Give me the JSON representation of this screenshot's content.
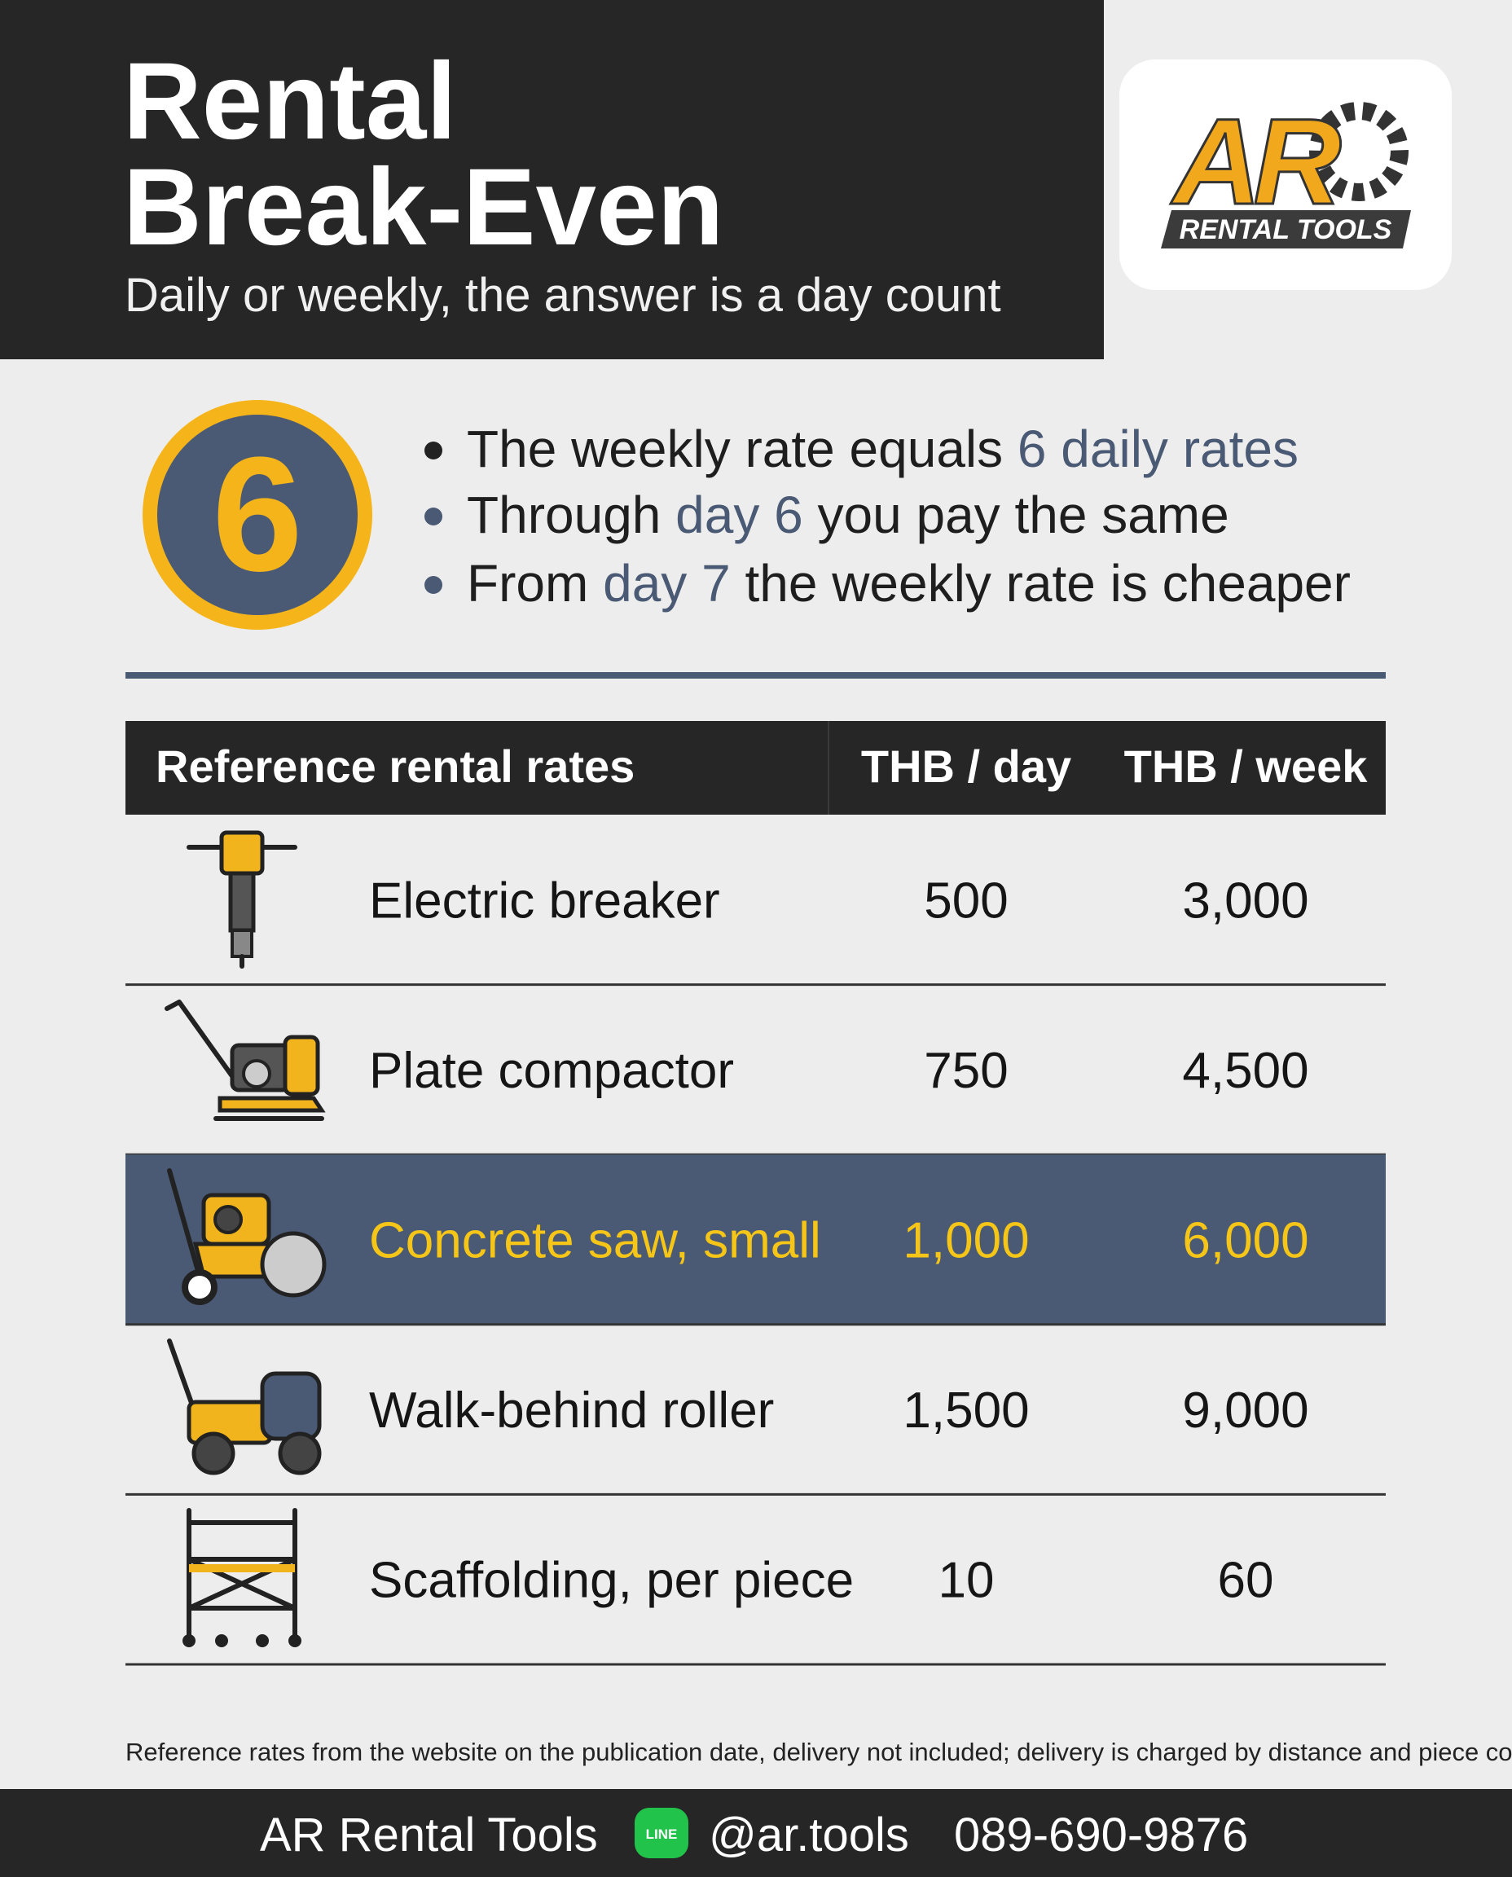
{
  "header": {
    "title": [
      "Rental",
      "Break-Even"
    ],
    "subtitle": "Daily or weekly, the answer is a day count"
  },
  "logo": {
    "mark": "AR",
    "text": "RENTAL TOOLS"
  },
  "badge": "6",
  "bullets": [
    [
      {
        "text": "The weekly rate equals "
      },
      {
        "text": "6 daily rates",
        "accent": true
      }
    ],
    [
      {
        "text": "Through "
      },
      {
        "text": "day 6",
        "accent": true
      },
      {
        "text": " you pay the same"
      }
    ],
    [
      {
        "text": "From "
      },
      {
        "text": "day 7",
        "accent": true
      },
      {
        "text": " the weekly rate is cheaper"
      }
    ]
  ],
  "table": {
    "headers": [
      "Reference rental rates",
      "THB / day",
      "THB / week"
    ],
    "rows": [
      {
        "name": "Electric breaker",
        "day": "500",
        "week": "3,000"
      },
      {
        "name": "Plate compactor",
        "day": "750",
        "week": "4,500"
      },
      {
        "name": "Concrete saw, small",
        "day": "1,000",
        "week": "6,000",
        "highlight": true
      },
      {
        "name": "Walk-behind roller",
        "day": "1,500",
        "week": "9,000"
      },
      {
        "name": "Scaffolding, per piece",
        "day": "10",
        "week": "60"
      }
    ]
  },
  "note": "Reference rates from the website on the publication date, delivery not included; delivery is charged by distance and piece count",
  "footer": {
    "brand": "AR Rental Tools",
    "line_icon": "LINE",
    "handle": "@ar.tools",
    "phone": "089-690-9876"
  }
}
